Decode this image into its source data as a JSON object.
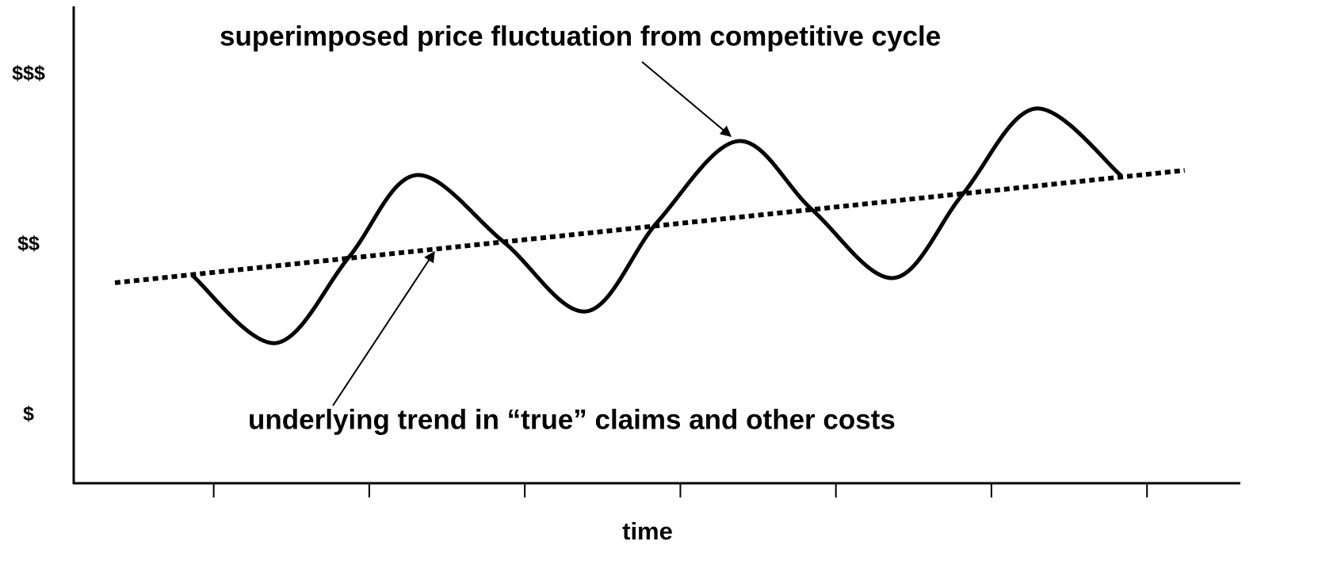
{
  "chart_data": {
    "type": "line",
    "xlabel": "time",
    "annotations": [
      "superimposed price fluctuation from competitive cycle",
      "underlying trend in “true” claims and other costs"
    ],
    "xlim": [
      -0.9,
      6.6
    ],
    "xticks": [
      0,
      1,
      2,
      3,
      4,
      5,
      6
    ],
    "ylim": [
      0.6,
      3.4
    ],
    "yticks": [
      {
        "value": 1,
        "label": "$"
      },
      {
        "value": 2,
        "label": "$$"
      },
      {
        "value": 3,
        "label": "$$$"
      }
    ],
    "grid": false,
    "series": [
      {
        "color": "#000000",
        "style": "dotted",
        "x": [
          -0.635,
          6.242
        ],
        "values": [
          1.777,
          2.437
        ]
      },
      {
        "color": "#000000",
        "style": "solid",
        "x": [
          -0.136,
          0.399,
          0.868,
          1.301,
          1.861,
          2.396,
          2.854,
          3.374,
          3.848,
          4.373,
          4.816,
          5.284,
          5.835
        ],
        "values": [
          1.819,
          1.423,
          1.926,
          2.409,
          2.019,
          1.609,
          2.135,
          2.609,
          2.205,
          1.805,
          2.298,
          2.8,
          2.405
        ]
      }
    ]
  }
}
